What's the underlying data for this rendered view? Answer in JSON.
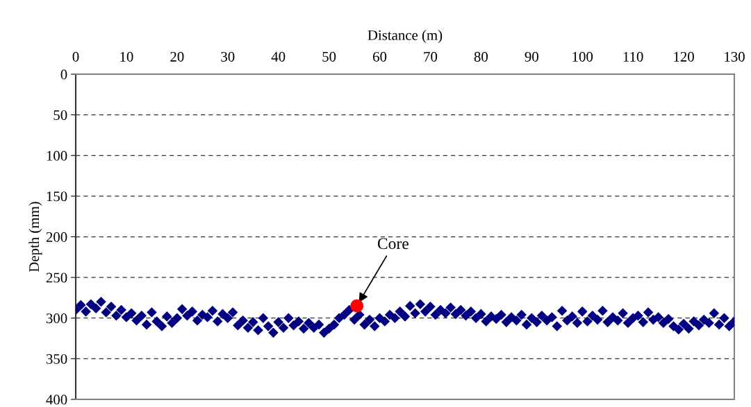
{
  "chart_data": {
    "type": "scatter",
    "xlabel": "Distance (m)",
    "ylabel": "Depth (mm)",
    "xlim": [
      0,
      130
    ],
    "xticks": [
      0,
      10,
      20,
      30,
      40,
      50,
      60,
      70,
      80,
      90,
      100,
      110,
      120,
      130
    ],
    "ylim": [
      400,
      0
    ],
    "yticks": [
      0,
      50,
      100,
      150,
      200,
      250,
      300,
      350,
      400
    ],
    "grid": "y",
    "series": [
      {
        "color": "#000080",
        "marker": "diamond",
        "x": [
          0,
          1,
          2,
          3,
          4,
          5,
          6,
          7,
          8,
          9,
          10,
          11,
          12,
          13,
          14,
          15,
          16,
          17,
          18,
          19,
          20,
          21,
          22,
          23,
          24,
          25,
          26,
          27,
          28,
          29,
          30,
          31,
          32,
          33,
          34,
          35,
          36,
          37,
          38,
          39,
          40,
          41,
          42,
          43,
          44,
          45,
          46,
          47,
          48,
          49,
          50,
          51,
          52,
          53,
          54,
          55,
          56,
          57,
          58,
          59,
          60,
          61,
          62,
          63,
          64,
          65,
          66,
          67,
          68,
          69,
          70,
          71,
          72,
          73,
          74,
          75,
          76,
          77,
          78,
          79,
          80,
          81,
          82,
          83,
          84,
          85,
          86,
          87,
          88,
          89,
          90,
          91,
          92,
          93,
          94,
          95,
          96,
          97,
          98,
          99,
          100,
          101,
          102,
          103,
          104,
          105,
          106,
          107,
          108,
          109,
          110,
          111,
          112,
          113,
          114,
          115,
          116,
          117,
          118,
          119,
          120,
          121,
          122,
          123,
          124,
          125,
          126,
          127,
          128,
          129,
          130
        ],
        "values": [
          290,
          284,
          292,
          283,
          288,
          280,
          293,
          286,
          297,
          290,
          299,
          294,
          303,
          297,
          308,
          293,
          304,
          310,
          298,
          306,
          300,
          289,
          297,
          292,
          303,
          296,
          299,
          291,
          304,
          295,
          300,
          293,
          309,
          303,
          312,
          305,
          315,
          300,
          310,
          318,
          305,
          312,
          300,
          309,
          304,
          313,
          306,
          312,
          308,
          318,
          313,
          308,
          300,
          296,
          290,
          302,
          296,
          308,
          302,
          310,
          300,
          304,
          296,
          300,
          292,
          298,
          285,
          294,
          283,
          292,
          286,
          296,
          290,
          294,
          287,
          295,
          290,
          297,
          292,
          300,
          295,
          304,
          298,
          301,
          296,
          305,
          299,
          303,
          296,
          308,
          300,
          305,
          297,
          303,
          299,
          310,
          291,
          303,
          298,
          306,
          292,
          304,
          297,
          302,
          291,
          305,
          299,
          303,
          294,
          306,
          300,
          297,
          305,
          293,
          302,
          299,
          306,
          301,
          310,
          314,
          307,
          313,
          304,
          309,
          302,
          306,
          294,
          308,
          300,
          310,
          304
        ]
      },
      {
        "color": "#ff0000",
        "marker": "circle",
        "x": [
          55.5
        ],
        "values": [
          285
        ]
      }
    ],
    "annotations": [
      {
        "text": "Core",
        "x": 55.5,
        "y": 285
      }
    ]
  }
}
